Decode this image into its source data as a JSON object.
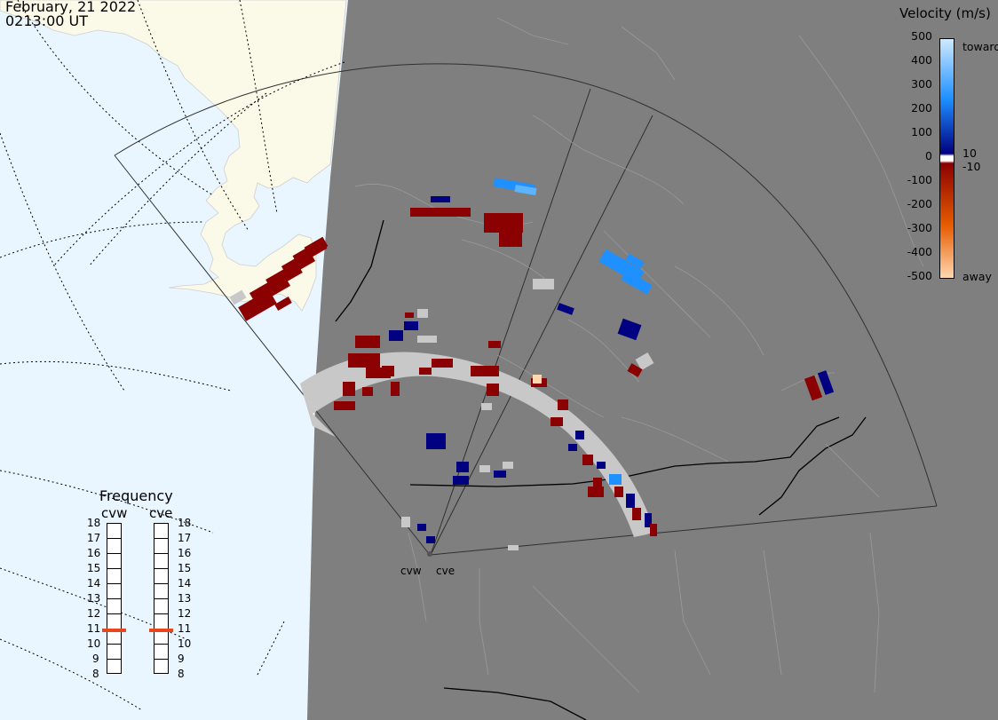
{
  "header": {
    "date": "February, 21 2022",
    "time": "0213:00 UT"
  },
  "colorbar": {
    "title": "Velocity (m/s)",
    "ticks": [
      "500",
      "400",
      "300",
      "200",
      "100",
      "0",
      "-100",
      "-200",
      "-300",
      "-400",
      "-500"
    ],
    "label_toward": "toward",
    "label_away": "away",
    "label_pos_threshold": "10",
    "label_neg_threshold": "-10",
    "colors": {
      "toward_max": "#cfeaff",
      "toward_mid": "#1e90ff",
      "toward_min": "#000080",
      "zero_gap": "#ffffff",
      "away_min": "#8b0000",
      "away_mid": "#e65c00",
      "away_max": "#ffd8b0"
    }
  },
  "frequency": {
    "title": "Frequency",
    "radars": [
      {
        "name": "cvw",
        "value": 10.9
      },
      {
        "name": "cve",
        "value": 10.9
      }
    ],
    "scale": [
      "18",
      "17",
      "16",
      "15",
      "14",
      "13",
      "12",
      "11",
      "10",
      "9",
      "8"
    ]
  },
  "radars": [
    {
      "name": "cvw"
    },
    {
      "name": "cve"
    }
  ],
  "colors": {
    "ocean": "#e9f6ff",
    "land": "#fbf9e8",
    "night": "#7f7f7f",
    "ground_scatter": "#c8c8c8"
  }
}
